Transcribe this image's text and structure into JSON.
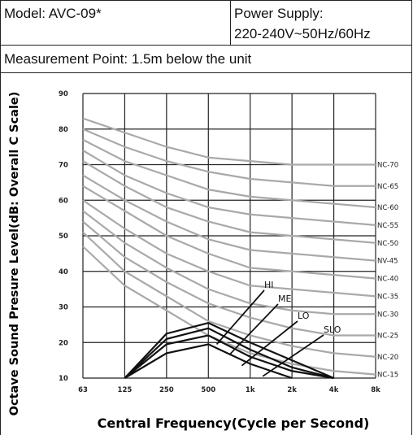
{
  "header": {
    "model": "Model: AVC-09*",
    "power_supply_label": "Power Supply:",
    "power_supply_value": "220-240V~50Hz/60Hz",
    "measurement_point": "Measurement Point: 1.5m below the unit"
  },
  "chart_data": {
    "type": "line",
    "title": "",
    "xlabel": "Central Frequency(Cycle per Second)",
    "ylabel": "Octave Sound Presure Level(dB: Overall C Scale)",
    "x_categories": [
      "63",
      "125",
      "250",
      "500",
      "1k",
      "2k",
      "4k",
      "8k"
    ],
    "y_ticks": [
      "90",
      "80",
      "70",
      "60",
      "50",
      "40",
      "30",
      "20",
      "10"
    ],
    "ylim": [
      10,
      90
    ],
    "grid": true,
    "nc_curves": [
      {
        "name": "NC-70",
        "values": [
          83,
          79,
          75,
          72,
          71,
          70,
          70,
          70
        ]
      },
      {
        "name": "NC-65",
        "values": [
          80,
          75,
          71,
          68,
          66,
          65,
          64,
          64
        ]
      },
      {
        "name": "NC-60",
        "values": [
          77,
          71,
          67,
          63,
          61,
          60,
          59,
          58
        ]
      },
      {
        "name": "NC-55",
        "values": [
          74,
          67,
          62,
          58,
          56,
          55,
          54,
          53
        ]
      },
      {
        "name": "NC-50",
        "values": [
          71,
          64,
          58,
          54,
          51,
          50,
          49,
          48
        ]
      },
      {
        "name": "NV-45",
        "values": [
          67,
          60,
          54,
          49,
          46,
          45,
          44,
          43
        ]
      },
      {
        "name": "NC-40",
        "values": [
          64,
          57,
          50,
          45,
          41,
          40,
          39,
          38
        ]
      },
      {
        "name": "NC-35",
        "values": [
          60,
          52,
          45,
          40,
          36,
          35,
          34,
          33
        ]
      },
      {
        "name": "NC-30",
        "values": [
          57,
          48,
          41,
          35,
          31,
          29,
          28,
          28
        ]
      },
      {
        "name": "NC-25",
        "values": [
          54,
          44,
          37,
          31,
          27,
          24,
          22,
          22
        ]
      },
      {
        "name": "NC-20",
        "values": [
          51,
          40,
          33,
          26,
          22,
          19,
          17,
          16
        ]
      },
      {
        "name": "NC-15",
        "values": [
          47,
          36,
          29,
          22,
          17,
          14,
          12,
          11
        ]
      }
    ],
    "series": [
      {
        "name": "HI",
        "x": [
          "125",
          "250",
          "500",
          "1k",
          "2k",
          "4k"
        ],
        "values": [
          10,
          22.5,
          25.5,
          20,
          15,
          10
        ]
      },
      {
        "name": "ME",
        "x": [
          "125",
          "250",
          "500",
          "1k",
          "2k",
          "4k"
        ],
        "values": [
          10,
          21,
          24,
          18,
          13,
          10
        ]
      },
      {
        "name": "LO",
        "x": [
          "125",
          "250",
          "500",
          "1k",
          "2k",
          "4k"
        ],
        "values": [
          10,
          19.5,
          22,
          16,
          12,
          10
        ]
      },
      {
        "name": "SLO",
        "x": [
          "125",
          "250",
          "500",
          "1k",
          "2k"
        ],
        "values": [
          10,
          17,
          19.5,
          14,
          10
        ]
      }
    ]
  },
  "colors": {
    "nc_curve": "#a9a9a9",
    "series": "#111111",
    "grid": "#222222"
  }
}
